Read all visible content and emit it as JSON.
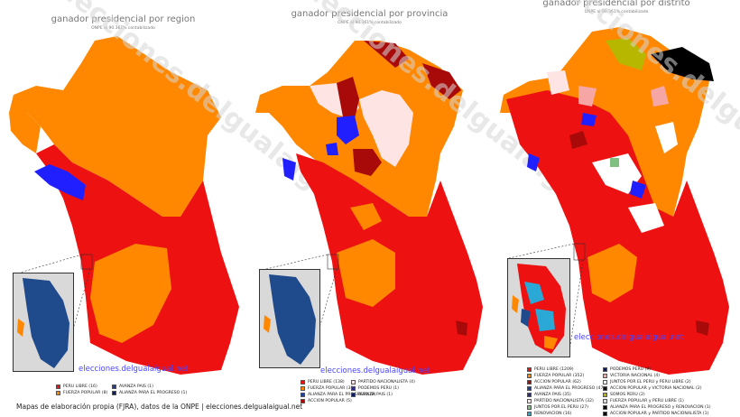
{
  "panels": [
    {
      "title": "ganador presidencial por region",
      "subtitle": "ONPE al 90.361% contabilizado",
      "watermark": "elecciones.delgualaigual.net",
      "site": "elecciones.delgualaigual.net",
      "legend": [
        {
          "label": "PERU LIBRE (16)",
          "color": "#ee1111"
        },
        {
          "label": "FUERZA POPULAR (8)",
          "color": "#ff8800"
        },
        {
          "label": "AVANZA PAIS (1)",
          "color": "#1f3f99"
        },
        {
          "label": "ALIANZA PARA EL PROGRESO (1)",
          "color": "#0a1b6e"
        }
      ]
    },
    {
      "title": "ganador presidencial por provincia",
      "subtitle": "ONPE al 90.361% contabilizado",
      "watermark": "elecciones.delgualaigual.net",
      "site": "elecciones.delgualaigual.net",
      "legend": [
        {
          "label": "PERU LIBRE (138)",
          "color": "#ee1111"
        },
        {
          "label": "FUERZA POPULAR (38)",
          "color": "#ff8800"
        },
        {
          "label": "ALIANZA PARA EL PROGRESO (8)",
          "color": "#1f3f99"
        },
        {
          "label": "ACCION POPULAR (5)",
          "color": "#a80a0a"
        },
        {
          "label": "PARTIDO NACIONALISTA (4)",
          "color": "#ffe4e4"
        },
        {
          "label": "PODEMOS PERU (1)",
          "color": "#2a2a8a"
        },
        {
          "label": "AVANZA PAIS (1)",
          "color": "#0a1b6e"
        }
      ]
    },
    {
      "title": "ganador presidencial por distrito",
      "subtitle": "ONPE al 90.361% contabilizado",
      "watermark": "elecciones.delgualaigual.net",
      "site": "elecciones.delgualaigual.net",
      "legend": [
        {
          "label": "PERU LIBRE (1209)",
          "color": "#ee1111"
        },
        {
          "label": "FUERZA POPULAR (352)",
          "color": "#ff8800"
        },
        {
          "label": "ACCION POPULAR (62)",
          "color": "#a80a0a"
        },
        {
          "label": "ALIANZA PARA EL PROGRESO (47)",
          "color": "#1f3f99"
        },
        {
          "label": "AVANZA PAIS (35)",
          "color": "#2a2a8a"
        },
        {
          "label": "PARTIDO NACIONALISTA (32)",
          "color": "#ffe4e4"
        },
        {
          "label": "JUNTOS POR EL PERU (27)",
          "color": "#7fbf7f"
        },
        {
          "label": "RENOVACION (16)",
          "color": "#2aa8d6"
        },
        {
          "label": "PODEMOS PERU (9)",
          "color": "#0a1b6e"
        },
        {
          "label": "VICTORIA NACIONAL (4)",
          "color": "#f7a6a6"
        },
        {
          "label": "JUNTOS POR EL PERU y PERU LIBRE (2)",
          "color": "#ffffff"
        },
        {
          "label": "ACCION POPULAR y VICTORIA NACIONAL (2)",
          "color": "#111111"
        },
        {
          "label": "SOMOS PERU (2)",
          "color": "#b7b700"
        },
        {
          "label": "FUERZA POPULAR y PERU LIBRE (1)",
          "color": "#dddddd"
        },
        {
          "label": "ALIANZA PARA EL PROGRESO y RENOVACION (1)",
          "color": "#000000"
        },
        {
          "label": "ACCION POPULAR y PARTIDO NACIONALISTA (1)",
          "color": "#000000"
        }
      ]
    }
  ],
  "footer": "Mapas de elaboración propia (FJRA), datos de la ONPE | elecciones.delgualaigual.net",
  "colors": {
    "red": "#ee1111",
    "orange": "#ff8800",
    "blue": "#1f3f99",
    "inset_bg": "#d9d9d9"
  }
}
